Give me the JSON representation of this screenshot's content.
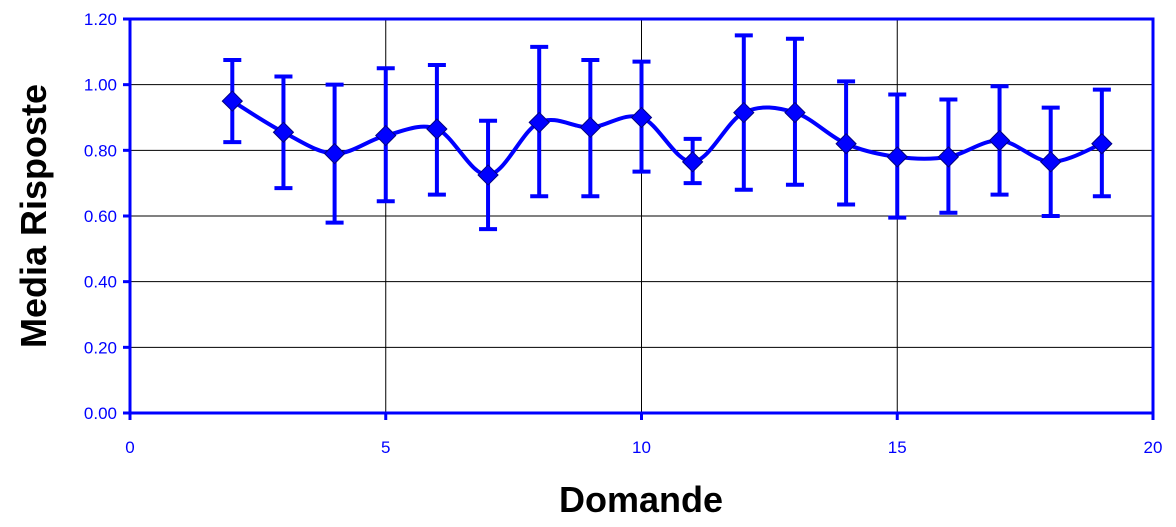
{
  "chart_data": {
    "type": "line",
    "title": "",
    "xlabel": "Domande",
    "ylabel": "Media Risposte",
    "xlim": [
      0,
      20
    ],
    "ylim": [
      0,
      1.2
    ],
    "x_ticks": [
      0,
      5,
      10,
      15,
      20
    ],
    "y_ticks": [
      0,
      0.2,
      0.4,
      0.6,
      0.8,
      1.0,
      1.2
    ],
    "x_tick_labels": [
      "0",
      "5",
      "10",
      "15",
      "20"
    ],
    "y_tick_labels": [
      "0.00",
      "0.20",
      "0.40",
      "0.60",
      "0.80",
      "1.00",
      "1.20"
    ],
    "grid": true,
    "smooth": true,
    "colors": {
      "series": "#0000ff",
      "grid": "#000000",
      "axis": "#0000ff"
    },
    "series": [
      {
        "name": "",
        "x": [
          2,
          3,
          4,
          5,
          6,
          7,
          8,
          9,
          10,
          11,
          12,
          13,
          14,
          15,
          16,
          17,
          18,
          19
        ],
        "y": [
          0.95,
          0.855,
          0.79,
          0.845,
          0.865,
          0.725,
          0.885,
          0.87,
          0.9,
          0.765,
          0.915,
          0.915,
          0.82,
          0.78,
          0.78,
          0.83,
          0.765,
          0.82
        ],
        "err_upper": [
          1.075,
          1.025,
          1.0,
          1.05,
          1.06,
          0.89,
          1.115,
          1.075,
          1.07,
          0.835,
          1.15,
          1.14,
          1.01,
          0.97,
          0.955,
          0.995,
          0.93,
          0.985
        ],
        "err_lower": [
          0.825,
          0.685,
          0.58,
          0.645,
          0.665,
          0.56,
          0.66,
          0.66,
          0.735,
          0.7,
          0.68,
          0.695,
          0.635,
          0.595,
          0.61,
          0.665,
          0.6,
          0.66
        ]
      }
    ]
  }
}
